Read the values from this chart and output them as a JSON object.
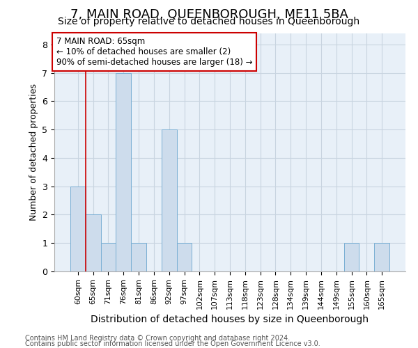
{
  "title": "7, MAIN ROAD, QUEENBOROUGH, ME11 5BA",
  "subtitle": "Size of property relative to detached houses in Queenborough",
  "xlabel": "Distribution of detached houses by size in Queenborough",
  "ylabel": "Number of detached properties",
  "categories": [
    "60sqm",
    "65sqm",
    "71sqm",
    "76sqm",
    "81sqm",
    "86sqm",
    "92sqm",
    "97sqm",
    "102sqm",
    "107sqm",
    "113sqm",
    "118sqm",
    "123sqm",
    "128sqm",
    "134sqm",
    "139sqm",
    "144sqm",
    "149sqm",
    "155sqm",
    "160sqm",
    "165sqm"
  ],
  "values": [
    3,
    2,
    1,
    7,
    1,
    0,
    5,
    1,
    0,
    0,
    0,
    0,
    0,
    0,
    0,
    0,
    0,
    0,
    1,
    0,
    1
  ],
  "bar_color": "#cddcec",
  "bar_edge_color": "#7aafd4",
  "highlight_index": 1,
  "highlight_line_color": "#cc0000",
  "annotation_text": "7 MAIN ROAD: 65sqm\n← 10% of detached houses are smaller (2)\n90% of semi-detached houses are larger (18) →",
  "annotation_box_color": "#ffffff",
  "annotation_box_edge_color": "#cc0000",
  "ylim": [
    0,
    8.4
  ],
  "yticks": [
    0,
    1,
    2,
    3,
    4,
    5,
    6,
    7,
    8
  ],
  "footer1": "Contains HM Land Registry data © Crown copyright and database right 2024.",
  "footer2": "Contains public sector information licensed under the Open Government Licence v3.0.",
  "bg_color": "#ffffff",
  "ax_bg_color": "#e8f0f8",
  "grid_color": "#c8d4e0",
  "title_fontsize": 13,
  "subtitle_fontsize": 10,
  "xlabel_fontsize": 10,
  "ylabel_fontsize": 9
}
